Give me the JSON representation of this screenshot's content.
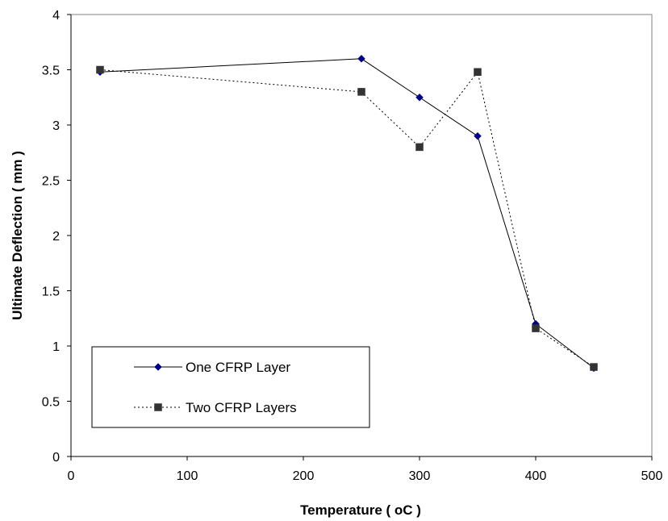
{
  "chart_data": {
    "type": "line",
    "title": "",
    "xlabel": "Temperature ( oC )",
    "ylabel": "Ultimate Deflection ( mm )",
    "xlim": [
      0,
      500
    ],
    "ylim": [
      0,
      4
    ],
    "xticks": [
      0,
      100,
      200,
      300,
      400,
      500
    ],
    "yticks": [
      0,
      0.5,
      1,
      1.5,
      2,
      2.5,
      3,
      3.5,
      4
    ],
    "xtick_labels": [
      "0",
      "100",
      "200",
      "300",
      "400",
      "500"
    ],
    "ytick_labels": [
      "0",
      "0.5",
      "1",
      "1.5",
      "2",
      "2.5",
      "3",
      "3.5",
      "4"
    ],
    "grid": false,
    "legend_position": "bottom-left",
    "series": [
      {
        "name": "One CFRP Layer",
        "x": [
          25,
          250,
          300,
          350,
          400,
          450
        ],
        "values": [
          3.48,
          3.6,
          3.25,
          2.9,
          1.2,
          0.8
        ],
        "color": "#00008b",
        "marker": "diamond",
        "line_style": "solid"
      },
      {
        "name": "Two CFRP Layers",
        "x": [
          25,
          250,
          300,
          350,
          400,
          450
        ],
        "values": [
          3.5,
          3.3,
          2.8,
          3.48,
          1.16,
          0.81
        ],
        "color": "#333333",
        "marker": "square",
        "line_style": "dotted"
      }
    ]
  }
}
